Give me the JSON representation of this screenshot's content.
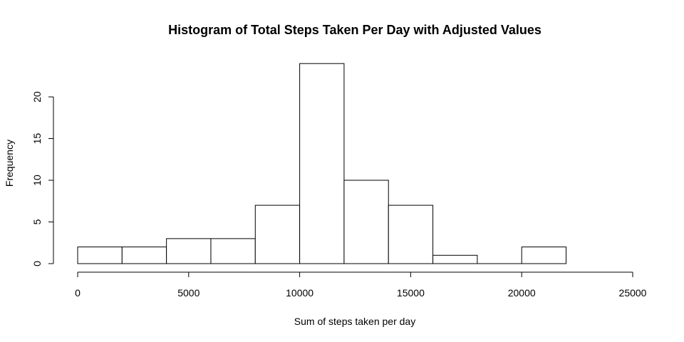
{
  "chart_data": {
    "type": "bar",
    "title": "Histogram of Total Steps Taken Per Day with Adjusted Values",
    "xlabel": "Sum of steps taken per day",
    "ylabel": "Frequency",
    "xlim": [
      0,
      25000
    ],
    "ylim": [
      0,
      24
    ],
    "xticks": [
      0,
      5000,
      10000,
      15000,
      20000,
      25000
    ],
    "yticks": [
      0,
      5,
      10,
      15,
      20
    ],
    "bins": [
      {
        "from": 0,
        "to": 2000,
        "count": 2
      },
      {
        "from": 2000,
        "to": 4000,
        "count": 2
      },
      {
        "from": 4000,
        "to": 6000,
        "count": 3
      },
      {
        "from": 6000,
        "to": 8000,
        "count": 3
      },
      {
        "from": 8000,
        "to": 10000,
        "count": 7
      },
      {
        "from": 10000,
        "to": 12000,
        "count": 24
      },
      {
        "from": 12000,
        "to": 14000,
        "count": 10
      },
      {
        "from": 14000,
        "to": 16000,
        "count": 7
      },
      {
        "from": 16000,
        "to": 18000,
        "count": 1
      },
      {
        "from": 18000,
        "to": 20000,
        "count": 0
      },
      {
        "from": 20000,
        "to": 22000,
        "count": 2
      }
    ],
    "grid": false,
    "legend": "none",
    "colors": {
      "bar_fill": "#ffffff",
      "bar_stroke": "#000000"
    }
  }
}
